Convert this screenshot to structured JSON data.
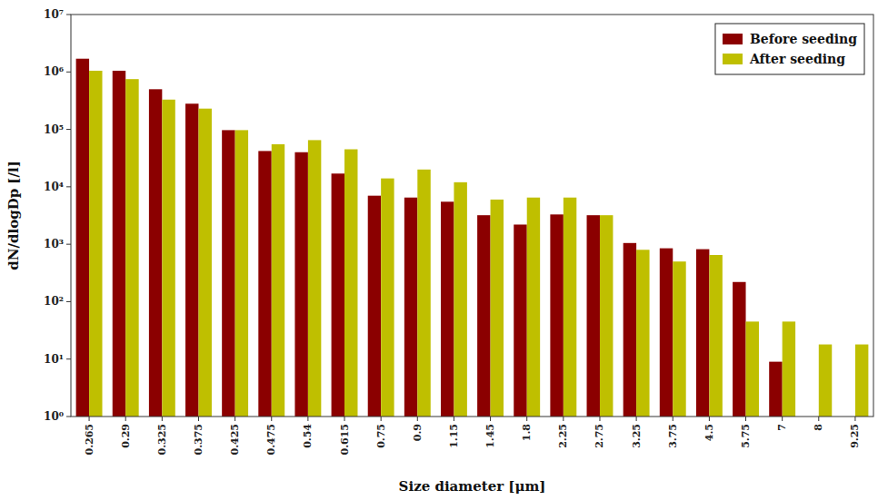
{
  "chart_data": {
    "type": "bar",
    "categories": [
      "0.265",
      "0.29",
      "0.325",
      "0.375",
      "0.425",
      "0.475",
      "0.54",
      "0.615",
      "0.75",
      "0.9",
      "1.15",
      "1.45",
      "1.8",
      "2.25",
      "2.75",
      "3.25",
      "3.75",
      "4.5",
      "5.75",
      "7",
      "8",
      "9.25"
    ],
    "series": [
      {
        "name": "Before seeding",
        "color": "#8B0000",
        "values": [
          1700000,
          1050000,
          500000,
          280000,
          97000,
          42000,
          40000,
          17000,
          7000,
          6500,
          5500,
          3200,
          2200,
          3300,
          3200,
          1050,
          850,
          820,
          220,
          9,
          1,
          1
        ]
      },
      {
        "name": "After seeding",
        "color": "#BFBF00",
        "values": [
          1050000,
          750000,
          330000,
          230000,
          97000,
          55000,
          65000,
          45000,
          14000,
          20000,
          12000,
          6000,
          6500,
          6500,
          3200,
          800,
          500,
          650,
          45,
          45,
          18,
          18
        ]
      }
    ],
    "xlabel": "Size diameter [μm]",
    "ylabel": "dN/dlogDp [/l]",
    "ylim": [
      1,
      10000000
    ],
    "yticks": [
      {
        "value": 1,
        "label": "10⁰"
      },
      {
        "value": 10,
        "label": "10¹"
      },
      {
        "value": 100,
        "label": "10²"
      },
      {
        "value": 1000,
        "label": "10³"
      },
      {
        "value": 10000,
        "label": "10⁴"
      },
      {
        "value": 100000,
        "label": "10⁵"
      },
      {
        "value": 1000000,
        "label": "10⁶"
      },
      {
        "value": 10000000,
        "label": "10⁷"
      }
    ],
    "log": "y",
    "grid": false,
    "legend": "upper right"
  }
}
